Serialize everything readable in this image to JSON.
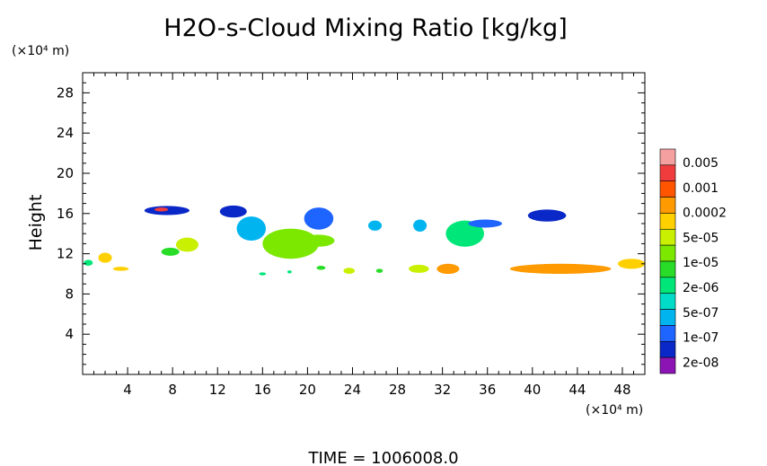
{
  "chart_data": {
    "type": "heatmap",
    "title": "H2O-s-Cloud Mixing Ratio [kg/kg]",
    "xlabel": "",
    "ylabel": "Height",
    "x_unit": "(×10⁴ m)",
    "y_unit": "(×10⁴ m)",
    "xlim": [
      0,
      50
    ],
    "ylim": [
      0,
      30
    ],
    "xticks": [
      "4",
      "8",
      "12",
      "16",
      "20",
      "24",
      "28",
      "32",
      "36",
      "40",
      "44",
      "48"
    ],
    "yticks": [
      "4",
      "8",
      "12",
      "16",
      "20",
      "24",
      "28"
    ],
    "footer": "TIME  =  1006008.0",
    "colorbar": {
      "levels": [
        "0.005",
        "0.001",
        "0.0002",
        "5e-05",
        "1e-05",
        "2e-06",
        "5e-07",
        "1e-07",
        "2e-08"
      ],
      "colors": [
        "#f4a0a0",
        "#f03c3c",
        "#ff5500",
        "#ff9a00",
        "#ffd000",
        "#c8f000",
        "#7ce800",
        "#28dc28",
        "#00e678",
        "#00dcc8",
        "#00b4f0",
        "#1e64ff",
        "#0a28c8",
        "#8c14b4"
      ]
    },
    "regions": [
      {
        "x": 0.5,
        "y": 11.1,
        "rx": 0.4,
        "ry": 0.3,
        "level": 8
      },
      {
        "x": 2.0,
        "y": 11.6,
        "rx": 0.6,
        "ry": 0.5,
        "level": 4
      },
      {
        "x": 3.4,
        "y": 10.5,
        "rx": 0.7,
        "ry": 0.2,
        "level": 4
      },
      {
        "x": 7.5,
        "y": 16.3,
        "rx": 2.0,
        "ry": 0.45,
        "level": 12
      },
      {
        "x": 7.0,
        "y": 16.4,
        "rx": 0.6,
        "ry": 0.2,
        "level": 1
      },
      {
        "x": 7.8,
        "y": 12.2,
        "rx": 0.8,
        "ry": 0.4,
        "level": 7
      },
      {
        "x": 9.3,
        "y": 12.9,
        "rx": 1.0,
        "ry": 0.7,
        "level": 5
      },
      {
        "x": 13.4,
        "y": 16.2,
        "rx": 1.2,
        "ry": 0.6,
        "level": 12
      },
      {
        "x": 15.0,
        "y": 14.5,
        "rx": 1.3,
        "ry": 1.2,
        "level": 10
      },
      {
        "x": 18.5,
        "y": 13.0,
        "rx": 2.5,
        "ry": 1.5,
        "level": 6
      },
      {
        "x": 21.0,
        "y": 15.5,
        "rx": 1.3,
        "ry": 1.1,
        "level": 11
      },
      {
        "x": 21.0,
        "y": 13.3,
        "rx": 1.4,
        "ry": 0.6,
        "level": 6
      },
      {
        "x": 26.0,
        "y": 14.8,
        "rx": 0.6,
        "ry": 0.5,
        "level": 10
      },
      {
        "x": 30.0,
        "y": 14.8,
        "rx": 0.6,
        "ry": 0.6,
        "level": 10
      },
      {
        "x": 34.0,
        "y": 14.0,
        "rx": 1.7,
        "ry": 1.3,
        "level": 8
      },
      {
        "x": 35.8,
        "y": 15.0,
        "rx": 1.5,
        "ry": 0.4,
        "level": 11
      },
      {
        "x": 41.3,
        "y": 15.8,
        "rx": 1.7,
        "ry": 0.6,
        "level": 12
      },
      {
        "x": 16.0,
        "y": 10.0,
        "rx": 0.3,
        "ry": 0.15,
        "level": 8
      },
      {
        "x": 18.4,
        "y": 10.2,
        "rx": 0.2,
        "ry": 0.15,
        "level": 8
      },
      {
        "x": 21.2,
        "y": 10.6,
        "rx": 0.4,
        "ry": 0.2,
        "level": 7
      },
      {
        "x": 23.7,
        "y": 10.3,
        "rx": 0.5,
        "ry": 0.3,
        "level": 5
      },
      {
        "x": 26.4,
        "y": 10.3,
        "rx": 0.3,
        "ry": 0.2,
        "level": 7
      },
      {
        "x": 29.9,
        "y": 10.5,
        "rx": 0.9,
        "ry": 0.4,
        "level": 5
      },
      {
        "x": 32.5,
        "y": 10.5,
        "rx": 1.0,
        "ry": 0.5,
        "level": 3
      },
      {
        "x": 42.5,
        "y": 10.5,
        "rx": 4.5,
        "ry": 0.5,
        "level": 3
      },
      {
        "x": 48.8,
        "y": 11.0,
        "rx": 1.2,
        "ry": 0.5,
        "level": 4
      }
    ]
  }
}
